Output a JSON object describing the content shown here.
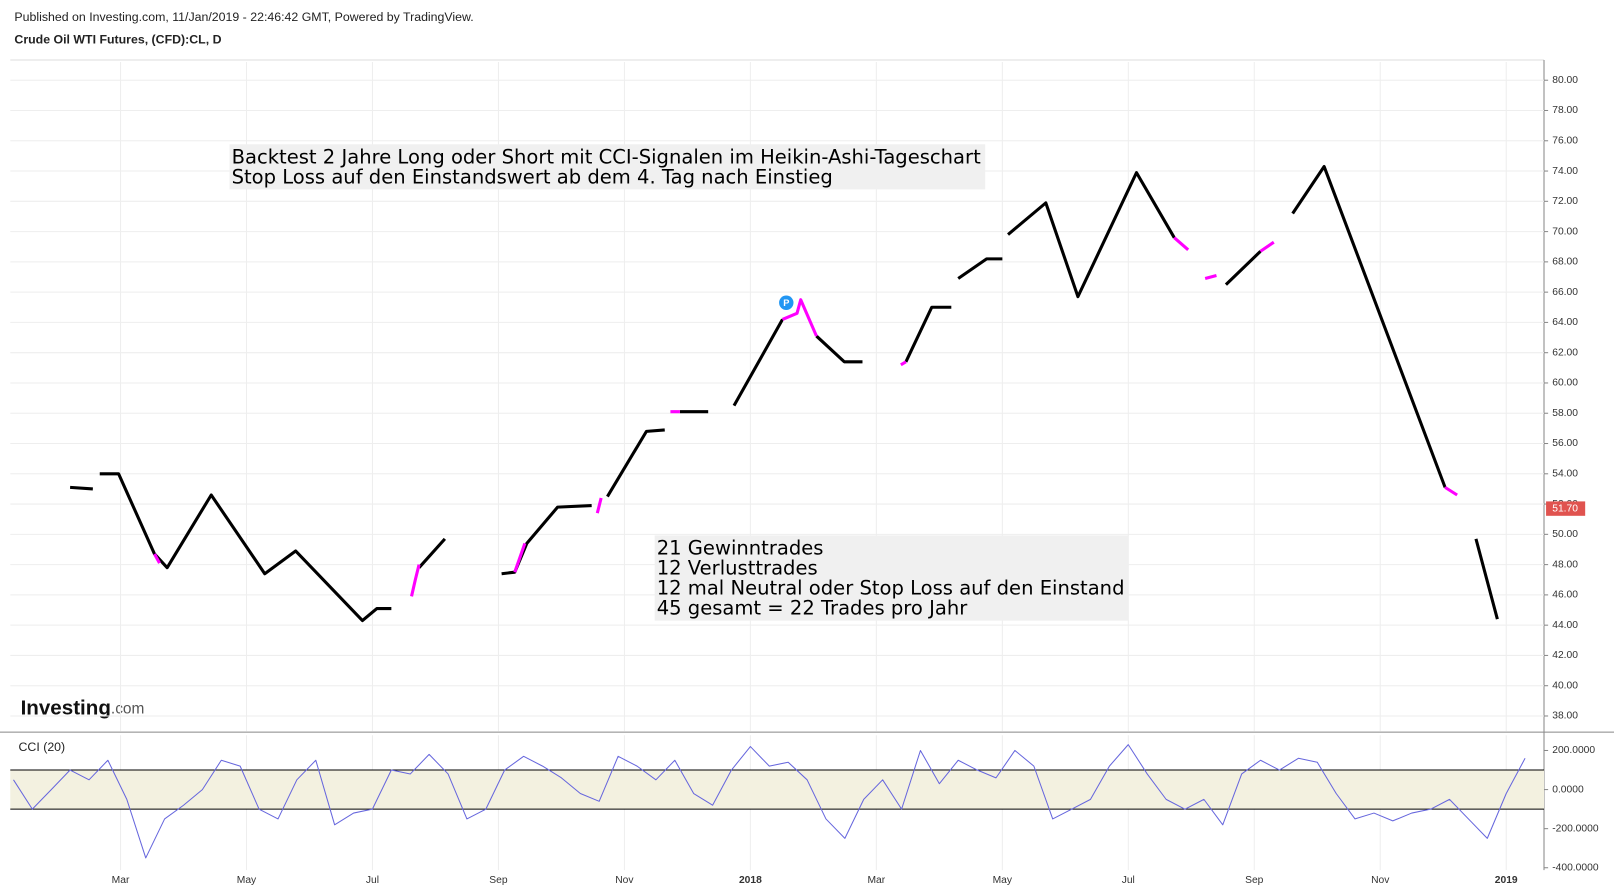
{
  "header": {
    "published": "Published on Investing.com, 11/Jan/2019 - 22:46:42 GMT, Powered by TradingView.",
    "symbol": "Crude Oil WTI Futures, (CFD):CL, D"
  },
  "logo": {
    "main": "Investing",
    "suffix": ".com"
  },
  "chart_data": [
    {
      "type": "line",
      "grid": true,
      "xlim": [
        0.25,
        24.6
      ],
      "ylim": [
        37,
        81.2
      ],
      "yticks": [
        {
          "value": 38,
          "label": "38.00"
        },
        {
          "value": 40,
          "label": "40.00"
        },
        {
          "value": 42,
          "label": "42.00"
        },
        {
          "value": 44,
          "label": "44.00"
        },
        {
          "value": 46,
          "label": "46.00"
        },
        {
          "value": 48,
          "label": "48.00"
        },
        {
          "value": 50,
          "label": "50.00"
        },
        {
          "value": 52,
          "label": "52.00"
        },
        {
          "value": 54,
          "label": "54.00"
        },
        {
          "value": 56,
          "label": "56.00"
        },
        {
          "value": 58,
          "label": "58.00"
        },
        {
          "value": 60,
          "label": "60.00"
        },
        {
          "value": 62,
          "label": "62.00"
        },
        {
          "value": 64,
          "label": "64.00"
        },
        {
          "value": 66,
          "label": "66.00"
        },
        {
          "value": 68,
          "label": "68.00"
        },
        {
          "value": 70,
          "label": "70.00"
        },
        {
          "value": 72,
          "label": "72.00"
        },
        {
          "value": 74,
          "label": "74.00"
        },
        {
          "value": 76,
          "label": "76.00"
        },
        {
          "value": 78,
          "label": "78.00"
        },
        {
          "value": 80,
          "label": "80.00"
        }
      ],
      "series": [
        {
          "color": "#000000",
          "x": [
            1.2,
            1.56,
            null,
            1.67,
            1.97,
            2.54,
            2.74,
            3.44,
            4.29,
            4.78,
            5.84,
            6.07,
            6.3,
            null,
            6.74,
            7.15,
            null,
            8.05,
            8.26,
            8.45,
            8.94,
            9.48,
            null,
            9.73,
            10.35,
            10.64,
            null,
            10.88,
            11.33,
            null,
            11.74,
            12.51,
            null,
            13.05,
            13.49,
            13.78,
            null,
            14.47,
            14.88,
            15.19,
            null,
            15.3,
            15.75,
            16.0,
            null,
            16.09,
            16.69,
            17.2,
            18.13,
            18.73,
            null,
            19.55,
            20.1,
            null,
            20.61,
            21.11,
            23.03,
            null,
            23.52,
            23.86
          ],
          "values": [
            53.1,
            53.0,
            null,
            54.0,
            54.0,
            48.7,
            47.8,
            52.6,
            47.4,
            48.9,
            44.3,
            45.1,
            45.1,
            null,
            47.8,
            49.7,
            null,
            47.4,
            47.5,
            49.4,
            51.8,
            51.9,
            null,
            52.5,
            56.8,
            56.9,
            null,
            58.1,
            58.1,
            null,
            58.5,
            64.2,
            null,
            63.1,
            61.4,
            61.4,
            null,
            61.4,
            65.0,
            65.0,
            null,
            66.9,
            68.2,
            68.2,
            null,
            69.8,
            71.9,
            65.7,
            73.9,
            69.6,
            null,
            66.5,
            68.7,
            null,
            71.2,
            74.3,
            53.1,
            null,
            49.7,
            44.4
          ]
        },
        {
          "color": "#ff00ff",
          "x": [
            2.54,
            2.62,
            null,
            6.62,
            6.68,
            6.74,
            null,
            8.26,
            8.42,
            null,
            9.57,
            9.63,
            null,
            10.73,
            10.88,
            null,
            12.51,
            12.74,
            12.8,
            13.05,
            null,
            14.39,
            14.47,
            null,
            18.73,
            18.95,
            null,
            19.22,
            19.4,
            null,
            20.1,
            20.31,
            null,
            23.03,
            23.22
          ],
          "values": [
            48.7,
            48.1,
            null,
            45.9,
            47.0,
            48.0,
            null,
            47.5,
            49.4,
            null,
            51.4,
            52.4,
            null,
            58.1,
            58.1,
            null,
            64.2,
            64.6,
            65.5,
            63.1,
            null,
            61.2,
            61.4,
            null,
            69.6,
            68.8,
            null,
            66.9,
            67.1,
            null,
            68.7,
            69.3,
            null,
            53.1,
            52.6
          ]
        }
      ],
      "last_price": {
        "value": 51.7,
        "label": "51.70",
        "color": "#e0534f"
      },
      "marker": {
        "label": "P",
        "x": 12.57,
        "value": 65.3,
        "color": "#2196f3"
      },
      "annotations": [
        [
          "Backtest 2 Jahre Long oder Short mit CCI-Signalen im Heikin-Ashi-Tageschart",
          "Stop Loss auf den Einstandswert ab dem 4. Tag nach Einstieg"
        ],
        [
          "21 Gewinntrades",
          "12 Verlusttrades",
          "12 mal Neutral oder Stop Loss auf den Einstand",
          "45 gesamt = 22 Trades pro Jahr"
        ]
      ]
    },
    {
      "type": "line",
      "title": "CCI (20)",
      "grid": true,
      "xlim": [
        0.25,
        24.6
      ],
      "ylim": [
        -412,
        278
      ],
      "xticks": [
        {
          "value": 2,
          "label": "Mar"
        },
        {
          "value": 4,
          "label": "May"
        },
        {
          "value": 6,
          "label": "Jul"
        },
        {
          "value": 8,
          "label": "Sep"
        },
        {
          "value": 10,
          "label": "Nov"
        },
        {
          "value": 12,
          "label": "2018"
        },
        {
          "value": 14,
          "label": "Mar"
        },
        {
          "value": 16,
          "label": "May"
        },
        {
          "value": 18,
          "label": "Jul"
        },
        {
          "value": 20,
          "label": "Sep"
        },
        {
          "value": 22,
          "label": "Nov"
        },
        {
          "value": 24,
          "label": "2019"
        }
      ],
      "yticks": [
        {
          "value": -400,
          "label": "-400.0000"
        },
        {
          "value": -200,
          "label": "-200.0000"
        },
        {
          "value": 0,
          "label": "0.0000"
        },
        {
          "value": 200,
          "label": "200.0000"
        }
      ],
      "bands": [
        -100,
        100
      ],
      "band_color": "#f3f1e0",
      "series": [
        {
          "color": "#6666dd",
          "x": [
            0.3,
            0.6,
            0.9,
            1.2,
            1.5,
            1.8,
            2.1,
            2.4,
            2.7,
            3.0,
            3.3,
            3.6,
            3.9,
            4.2,
            4.5,
            4.8,
            5.1,
            5.4,
            5.7,
            6.0,
            6.3,
            6.6,
            6.9,
            7.2,
            7.5,
            7.8,
            8.1,
            8.4,
            8.7,
            9.0,
            9.3,
            9.6,
            9.9,
            10.2,
            10.5,
            10.8,
            11.1,
            11.4,
            11.7,
            12.0,
            12.3,
            12.6,
            12.9,
            13.2,
            13.5,
            13.8,
            14.1,
            14.4,
            14.7,
            15.0,
            15.3,
            15.6,
            15.9,
            16.2,
            16.5,
            16.8,
            17.1,
            17.4,
            17.7,
            18.0,
            18.3,
            18.6,
            18.9,
            19.2,
            19.5,
            19.8,
            20.1,
            20.4,
            20.7,
            21.0,
            21.3,
            21.6,
            21.9,
            22.2,
            22.5,
            22.8,
            23.1,
            23.4,
            23.7,
            24.0,
            24.3
          ],
          "values": [
            50,
            -100,
            0,
            100,
            50,
            150,
            -50,
            -350,
            -150,
            -80,
            0,
            150,
            120,
            -100,
            -150,
            50,
            150,
            -180,
            -120,
            -100,
            100,
            80,
            180,
            80,
            -150,
            -100,
            100,
            170,
            120,
            60,
            -20,
            -60,
            170,
            120,
            50,
            150,
            -20,
            -80,
            100,
            220,
            120,
            140,
            50,
            -150,
            -250,
            -50,
            50,
            -100,
            200,
            30,
            150,
            100,
            60,
            200,
            120,
            -150,
            -100,
            -50,
            120,
            230,
            80,
            -50,
            -100,
            -50,
            -180,
            80,
            150,
            100,
            160,
            140,
            -20,
            -150,
            -120,
            -160,
            -120,
            -100,
            -50,
            -150,
            -250,
            -20,
            160
          ]
        }
      ]
    }
  ]
}
